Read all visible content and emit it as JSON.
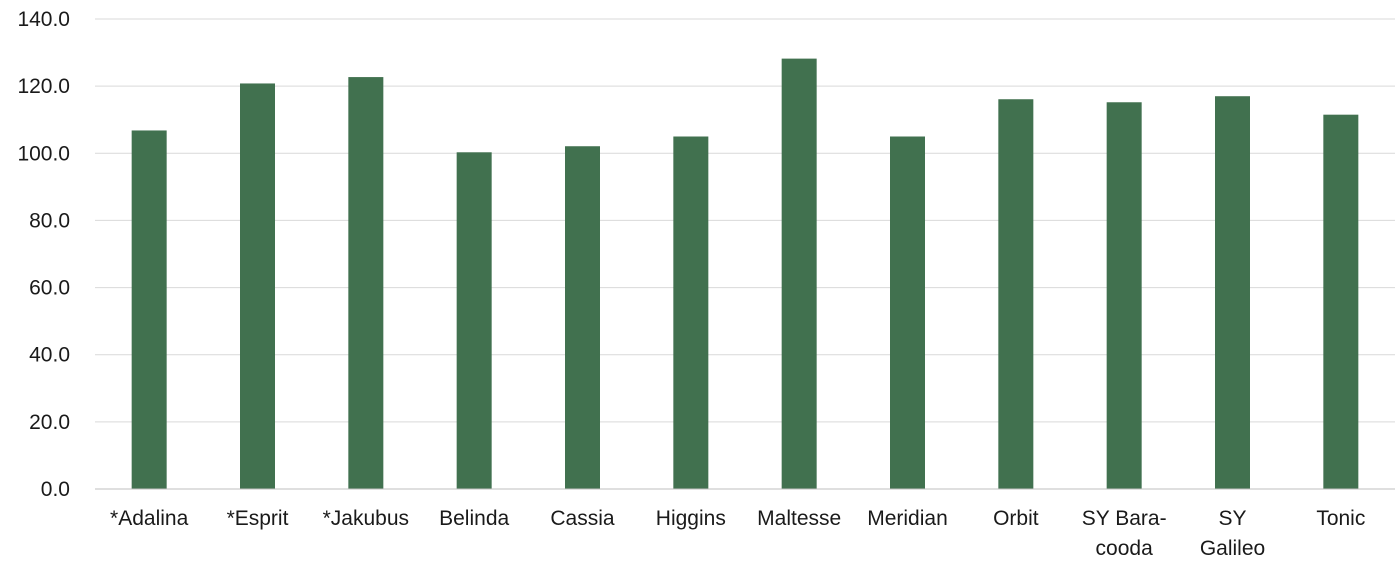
{
  "chart_data": {
    "type": "bar",
    "title": "",
    "xlabel": "",
    "ylabel": "",
    "categories": [
      [
        "*Adalina"
      ],
      [
        "*Esprit"
      ],
      [
        "*Jakubus"
      ],
      [
        "Belinda"
      ],
      [
        "Cassia"
      ],
      [
        "Higgins"
      ],
      [
        "Maltesse"
      ],
      [
        "Meridian"
      ],
      [
        "Orbit"
      ],
      [
        "SY Bara-",
        "cooda"
      ],
      [
        "SY",
        "Galileo"
      ],
      [
        "Tonic"
      ]
    ],
    "values": [
      106.8,
      120.8,
      122.7,
      100.3,
      102.1,
      105.0,
      128.2,
      105.0,
      116.1,
      115.2,
      117.0,
      111.5
    ],
    "ylim": [
      0,
      140
    ],
    "yticks": [
      "0.0",
      "20.0",
      "40.0",
      "60.0",
      "80.0",
      "100.0",
      "120.0",
      "140.0"
    ],
    "grid": true,
    "legend": "none",
    "colors": {
      "bar": "#41714f",
      "grid": "#d9d9d9",
      "text": "#1a1a1a"
    }
  }
}
